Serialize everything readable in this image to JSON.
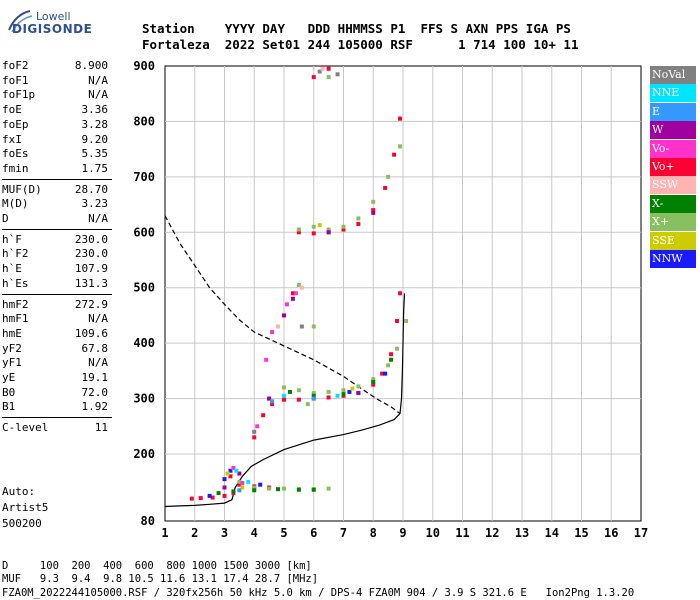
{
  "logo": {
    "line1": "Lowell",
    "line2": "DIGISONDE"
  },
  "header": {
    "row1": "Station    YYYY DAY   DDD HHMMSS P1  FFS S AXN PPS IGA PS",
    "row2": "Fortaleza  2022 Set01 244 105000 RSF      1 714 100 10+ 11"
  },
  "params": [
    {
      "group": 1,
      "items": [
        {
          "label": "foF2",
          "value": "8.900"
        },
        {
          "label": "foF1",
          "value": "N/A"
        },
        {
          "label": "foF1p",
          "value": "N/A"
        },
        {
          "label": "foE",
          "value": "3.36"
        },
        {
          "label": "foEp",
          "value": "3.28"
        },
        {
          "label": "fxI",
          "value": "9.20"
        },
        {
          "label": "foEs",
          "value": "5.35"
        },
        {
          "label": "fmin",
          "value": "1.75"
        }
      ]
    },
    {
      "group": 2,
      "items": [
        {
          "label": "MUF(D)",
          "value": "28.70"
        },
        {
          "label": "M(D)",
          "value": "3.23"
        },
        {
          "label": "D",
          "value": "N/A"
        }
      ]
    },
    {
      "group": 3,
      "items": [
        {
          "label": "h`F",
          "value": "230.0"
        },
        {
          "label": "h`F2",
          "value": "230.0"
        },
        {
          "label": "h`E",
          "value": "107.9"
        },
        {
          "label": "h`Es",
          "value": "131.3"
        }
      ]
    },
    {
      "group": 4,
      "items": [
        {
          "label": "hmF2",
          "value": "272.9"
        },
        {
          "label": "hmF1",
          "value": "N/A"
        },
        {
          "label": "hmE",
          "value": "109.6"
        },
        {
          "label": "yF2",
          "value": "67.8"
        },
        {
          "label": "yF1",
          "value": "N/A"
        },
        {
          "label": "yE",
          "value": "19.1"
        },
        {
          "label": "B0",
          "value": "72.0"
        },
        {
          "label": "B1",
          "value": "1.92"
        }
      ]
    },
    {
      "group": 5,
      "items": [
        {
          "label": "C-level",
          "value": "11"
        }
      ]
    }
  ],
  "auto": {
    "line1": "Auto:",
    "line2": "Artist5",
    "line3": "500200"
  },
  "legend": [
    {
      "label": "NoVal",
      "color": "#808080"
    },
    {
      "label": "NNE",
      "color": "#00e5ff"
    },
    {
      "label": "E",
      "color": "#3399ff"
    },
    {
      "label": "W",
      "color": "#a000a0"
    },
    {
      "label": "Vo-",
      "color": "#ff33cc"
    },
    {
      "label": "Vo+",
      "color": "#ff0033"
    },
    {
      "label": "SSW",
      "color": "#ffb3b3"
    },
    {
      "label": "X-",
      "color": "#008000"
    },
    {
      "label": "X+",
      "color": "#88c060"
    },
    {
      "label": "SSE",
      "color": "#cccc00"
    },
    {
      "label": "NNW",
      "color": "#1a1aff"
    }
  ],
  "footer": {
    "line1": "D     100  200  400  600  800 1000 1500 3000 [km]",
    "line2": "MUF   9.3  9.4  9.8 10.5 11.6 13.1 17.4 28.7 [MHz]",
    "line3": "FZA0M_2022244105000.RSF / 320fx256h 50 kHz 5.0 km / DPS-4 FZA0M 904 / 3.9 S 321.6 E   Ion2Png 1.3.20"
  },
  "chart_data": {
    "type": "scatter",
    "xlim": [
      1,
      17
    ],
    "ylim": [
      80,
      900
    ],
    "xticks": [
      1,
      2,
      3,
      4,
      5,
      6,
      7,
      8,
      9,
      10,
      11,
      12,
      13,
      14,
      15,
      16,
      17
    ],
    "yticks": [
      80,
      200,
      300,
      400,
      500,
      600,
      700,
      800,
      900
    ],
    "grid": true,
    "series": [
      {
        "name": "Vo+",
        "style": "scatter",
        "points": [
          [
            1.9,
            120
          ],
          [
            2.2,
            121
          ],
          [
            2.6,
            122
          ],
          [
            3.0,
            125
          ],
          [
            3.3,
            130
          ],
          [
            4.0,
            230
          ],
          [
            4.3,
            270
          ],
          [
            4.6,
            290
          ],
          [
            5.0,
            298
          ],
          [
            5.5,
            298
          ],
          [
            6.0,
            300
          ],
          [
            6.5,
            302
          ],
          [
            7.0,
            305
          ],
          [
            7.5,
            310
          ],
          [
            8.0,
            325
          ],
          [
            8.3,
            345
          ],
          [
            8.6,
            380
          ],
          [
            8.8,
            440
          ],
          [
            8.9,
            490
          ],
          [
            5.5,
            600
          ],
          [
            6.0,
            598
          ],
          [
            6.5,
            600
          ],
          [
            7.0,
            605
          ],
          [
            7.5,
            615
          ],
          [
            8.0,
            640
          ],
          [
            8.4,
            680
          ],
          [
            8.7,
            740
          ],
          [
            8.9,
            805
          ],
          [
            5.3,
            490
          ],
          [
            6.0,
            880
          ],
          [
            6.5,
            895
          ],
          [
            3.2,
            160
          ],
          [
            3.5,
            145
          ],
          [
            4.0,
            142
          ],
          [
            4.5,
            140
          ]
        ]
      },
      {
        "name": "X+",
        "style": "scatter",
        "points": [
          [
            3.0,
            140
          ],
          [
            3.5,
            150
          ],
          [
            4.0,
            140
          ],
          [
            4.5,
            138
          ],
          [
            5.0,
            138
          ],
          [
            5.5,
            137
          ],
          [
            6.0,
            137
          ],
          [
            6.5,
            138
          ],
          [
            4.5,
            300
          ],
          [
            5.0,
            320
          ],
          [
            5.5,
            315
          ],
          [
            6.0,
            310
          ],
          [
            6.5,
            312
          ],
          [
            7.0,
            315
          ],
          [
            7.5,
            322
          ],
          [
            8.0,
            335
          ],
          [
            8.5,
            360
          ],
          [
            8.8,
            390
          ],
          [
            9.1,
            440
          ],
          [
            5.5,
            605
          ],
          [
            6.0,
            610
          ],
          [
            6.5,
            605
          ],
          [
            7.0,
            610
          ],
          [
            7.5,
            625
          ],
          [
            8.0,
            655
          ],
          [
            8.5,
            700
          ],
          [
            8.9,
            755
          ],
          [
            5.5,
            505
          ],
          [
            6.0,
            430
          ],
          [
            5.8,
            290
          ],
          [
            6.5,
            880
          ]
        ]
      },
      {
        "name": "X-",
        "style": "scatter",
        "points": [
          [
            2.8,
            130
          ],
          [
            3.3,
            133
          ],
          [
            4.0,
            135
          ],
          [
            4.8,
            137
          ],
          [
            5.5,
            136
          ],
          [
            6.0,
            136
          ],
          [
            5.2,
            312
          ],
          [
            6.0,
            305
          ],
          [
            7.0,
            308
          ],
          [
            8.0,
            330
          ],
          [
            8.6,
            370
          ]
        ]
      },
      {
        "name": "NNW",
        "style": "scatter",
        "points": [
          [
            2.5,
            125
          ],
          [
            3.0,
            155
          ],
          [
            3.2,
            170
          ],
          [
            4.2,
            145
          ],
          [
            7.2,
            312
          ],
          [
            8.4,
            345
          ]
        ]
      },
      {
        "name": "W",
        "style": "scatter",
        "points": [
          [
            3.0,
            140
          ],
          [
            3.5,
            165
          ],
          [
            5.0,
            450
          ],
          [
            5.3,
            480
          ],
          [
            4.5,
            300
          ],
          [
            6.5,
            600
          ],
          [
            7.5,
            310
          ],
          [
            8.0,
            635
          ]
        ]
      },
      {
        "name": "Vo-",
        "style": "scatter",
        "points": [
          [
            3.3,
            175
          ],
          [
            4.1,
            250
          ],
          [
            4.4,
            370
          ],
          [
            4.6,
            420
          ],
          [
            5.1,
            470
          ],
          [
            5.4,
            490
          ],
          [
            3.6,
            148
          ]
        ]
      },
      {
        "name": "NNE",
        "style": "scatter",
        "points": [
          [
            3.4,
            170
          ],
          [
            3.8,
            150
          ],
          [
            5.0,
            305
          ],
          [
            6.8,
            305
          ]
        ]
      },
      {
        "name": "SSE",
        "style": "scatter",
        "points": [
          [
            3.1,
            165
          ],
          [
            3.6,
            140
          ],
          [
            6.2,
            613
          ],
          [
            7.3,
            318
          ]
        ]
      },
      {
        "name": "E",
        "style": "scatter",
        "points": [
          [
            3.5,
            135
          ],
          [
            4.6,
            295
          ],
          [
            6.0,
            300
          ]
        ]
      },
      {
        "name": "NoVal",
        "style": "scatter",
        "points": [
          [
            6.2,
            890
          ],
          [
            6.8,
            885
          ],
          [
            4.0,
            240
          ],
          [
            5.6,
            430
          ]
        ]
      },
      {
        "name": "SSW",
        "style": "scatter",
        "points": [
          [
            4.8,
            430
          ],
          [
            5.6,
            500
          ],
          [
            6.3,
            895
          ]
        ]
      },
      {
        "name": "",
        "style": "line-solid",
        "points": [
          [
            1.0,
            106
          ],
          [
            1.5,
            107
          ],
          [
            2.0,
            108
          ],
          [
            2.5,
            110
          ],
          [
            3.0,
            112
          ],
          [
            3.25,
            118
          ],
          [
            3.36,
            140
          ],
          [
            3.6,
            160
          ],
          [
            3.9,
            178
          ],
          [
            4.3,
            190
          ],
          [
            5.0,
            208
          ],
          [
            6.0,
            225
          ],
          [
            7.0,
            235
          ],
          [
            7.6,
            243
          ],
          [
            8.2,
            252
          ],
          [
            8.7,
            262
          ],
          [
            8.9,
            272.9
          ],
          [
            8.95,
            300
          ],
          [
            8.98,
            350
          ],
          [
            9.0,
            400
          ],
          [
            9.02,
            455
          ],
          [
            9.05,
            490
          ]
        ]
      },
      {
        "name": "",
        "style": "line-dash",
        "points": [
          [
            1.0,
            630
          ],
          [
            1.5,
            580
          ],
          [
            2.0,
            540
          ],
          [
            2.5,
            500
          ],
          [
            3.0,
            470
          ],
          [
            3.5,
            442
          ],
          [
            4.0,
            420
          ],
          [
            5.0,
            395
          ],
          [
            6.0,
            370
          ],
          [
            7.0,
            340
          ],
          [
            7.6,
            318
          ],
          [
            8.1,
            300
          ],
          [
            8.6,
            285
          ],
          [
            8.9,
            272.9
          ]
        ]
      }
    ]
  }
}
